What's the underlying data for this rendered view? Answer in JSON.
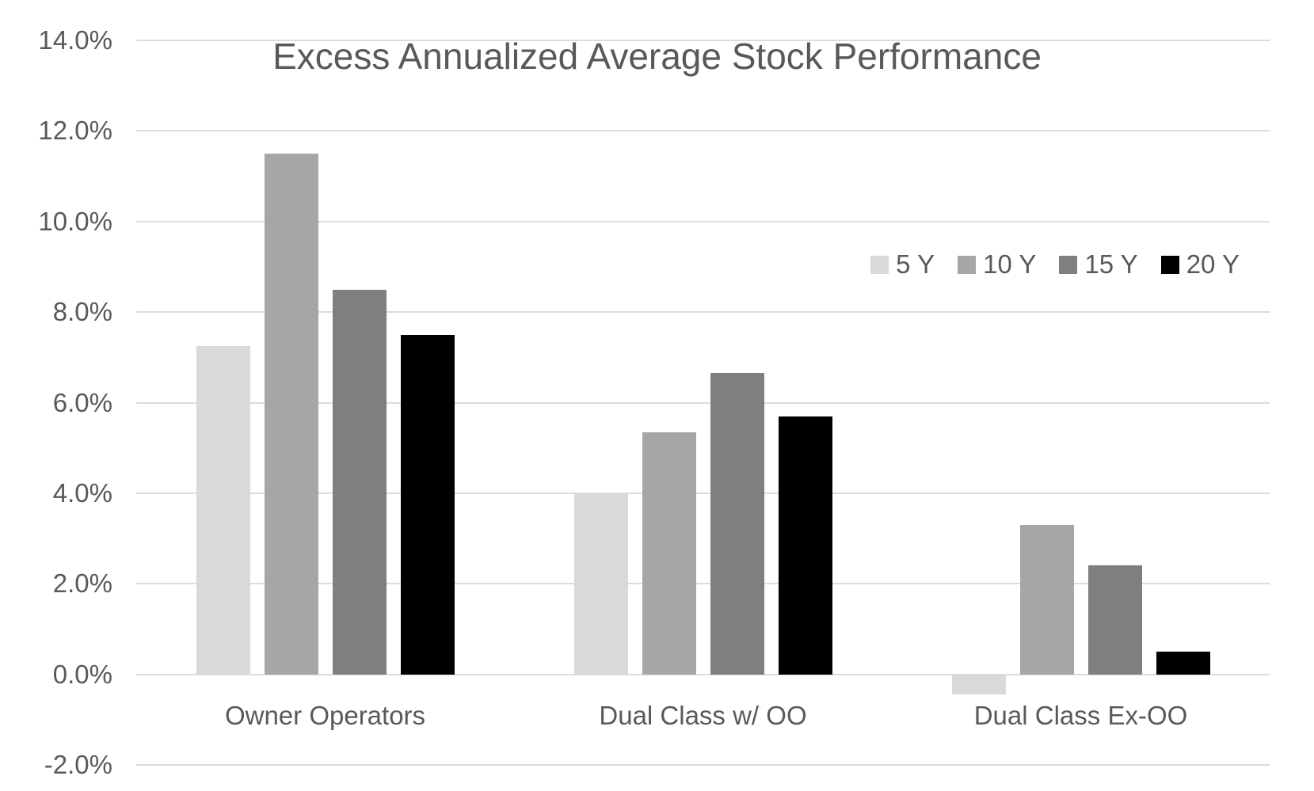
{
  "chart_data": {
    "type": "bar",
    "title": "Excess Annualized Average Stock Performance",
    "categories": [
      "Owner Operators",
      "Dual Class w/ OO",
      "Dual Class Ex-OO"
    ],
    "series": [
      {
        "name": "5 Y",
        "color": "#d9d9d9",
        "values": [
          7.25,
          4.0,
          -0.45
        ]
      },
      {
        "name": "10 Y",
        "color": "#a6a6a6",
        "values": [
          11.5,
          5.35,
          3.3
        ]
      },
      {
        "name": "15 Y",
        "color": "#7f7f7f",
        "values": [
          8.5,
          6.65,
          2.4
        ]
      },
      {
        "name": "20 Y",
        "color": "#000000",
        "values": [
          7.5,
          5.7,
          0.5
        ]
      }
    ],
    "ylim": [
      -2,
      14
    ],
    "yticks": [
      14,
      12,
      10,
      8,
      6,
      4,
      2,
      0,
      -2
    ],
    "ytick_labels": [
      "14.0%",
      "12.0%",
      "10.0%",
      "8.0%",
      "6.0%",
      "4.0%",
      "2.0%",
      "0.0%",
      "-2.0%"
    ],
    "xlabel": "",
    "ylabel": "",
    "grid": true,
    "legend_position": "inside-upper-right",
    "colors": {
      "text": "#595959",
      "gridline": "#dcdcdc",
      "background": "#ffffff"
    }
  }
}
